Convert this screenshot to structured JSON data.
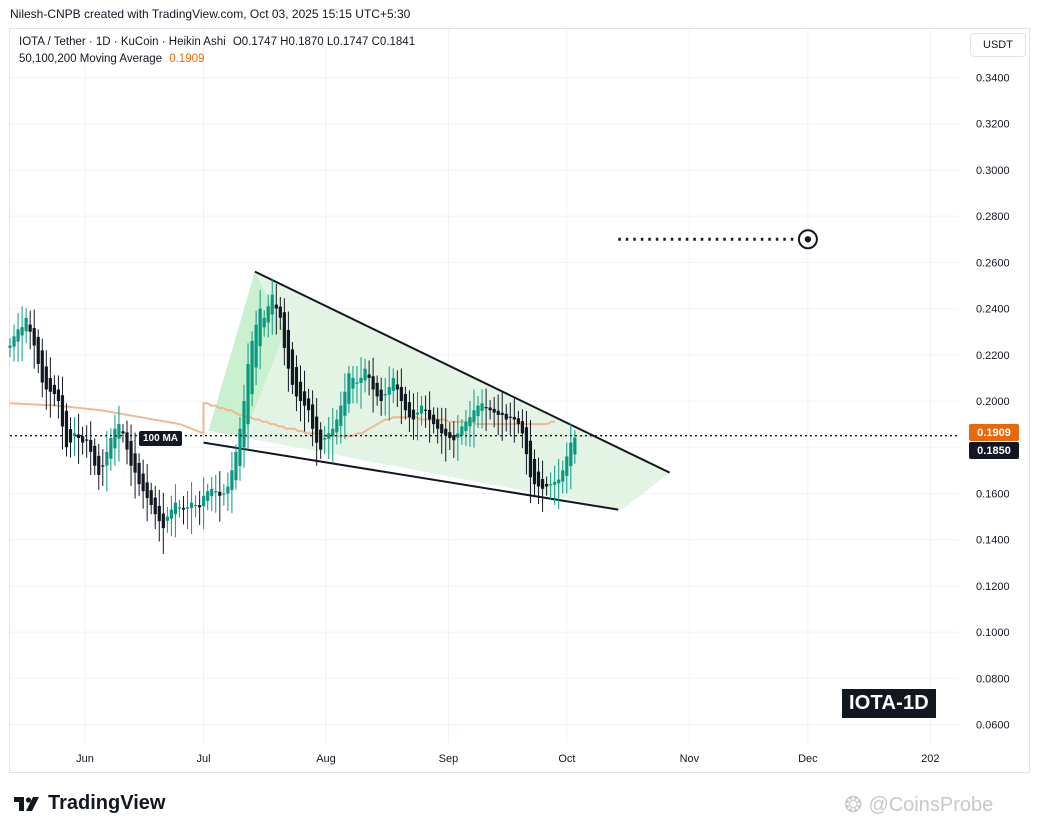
{
  "header": {
    "credit": "Nilesh-CNPB created with TradingView.com, Oct 03, 2025 15:15 UTC+5:30"
  },
  "legend": {
    "symbol_line": "IOTA / Tether · 1D · KuCoin · Heikin Ashi",
    "ohlc": "O0.1747 H0.1870 L0.1747 C0.1841",
    "ma_label": "50,100,200 Moving Average",
    "ma_value": "0.1909"
  },
  "currency_button": "USDT",
  "price_tags": {
    "ma": "0.1909",
    "last": "0.1850"
  },
  "ma_chip": "100 MA",
  "ticker_badge": "IOTA-1D",
  "footer": {
    "logo_text": "TradingView",
    "watermark": "@CoinsProbe"
  },
  "colors": {
    "up": "#089981",
    "down": "#131722",
    "ma": "#f0b08a",
    "ma_tag": "#e8690c",
    "wedge_fill": "#e3f4e5",
    "wedge_fill_bright": "#b8ecc0",
    "grid": "#f0f3fa"
  },
  "chart_data": {
    "type": "candlestick",
    "title": "IOTA / Tether · 1D · KuCoin · Heikin Ashi",
    "ylim": [
      0.052,
      0.361
    ],
    "y_ticks": [
      "0.0600",
      "0.0800",
      "0.1000",
      "0.1200",
      "0.1400",
      "0.1600",
      "0.1800",
      "0.2000",
      "0.2200",
      "0.2400",
      "0.2600",
      "0.2800",
      "0.3000",
      "0.3200",
      "0.3400"
    ],
    "x_ticks": [
      {
        "label": "Jun",
        "date": "2025-06-01"
      },
      {
        "label": "Jul",
        "date": "2025-07-01"
      },
      {
        "label": "Aug",
        "date": "2025-08-01"
      },
      {
        "label": "Sep",
        "date": "2025-09-01"
      },
      {
        "label": "Oct",
        "date": "2025-10-01"
      },
      {
        "label": "Nov",
        "date": "2025-11-01"
      },
      {
        "label": "Dec",
        "date": "2025-12-01"
      },
      {
        "label": "202",
        "date": "2026-01-01"
      }
    ],
    "x_range": [
      "2025-05-13",
      "2026-01-08"
    ],
    "last_price": 0.185,
    "ma_current": 0.1909,
    "closes": [
      0.224,
      0.228,
      0.231,
      0.232,
      0.236,
      0.23,
      0.224,
      0.216,
      0.208,
      0.205,
      0.204,
      0.203,
      0.2,
      0.189,
      0.18,
      0.182,
      0.186,
      0.184,
      0.182,
      0.183,
      0.178,
      0.172,
      0.168,
      0.172,
      0.178,
      0.184,
      0.188,
      0.19,
      0.186,
      0.179,
      0.172,
      0.169,
      0.164,
      0.161,
      0.158,
      0.155,
      0.151,
      0.148,
      0.145,
      0.15,
      0.153,
      0.156,
      0.154,
      0.153,
      0.154,
      0.156,
      0.155,
      0.154,
      0.159,
      0.161,
      0.162,
      0.161,
      0.159,
      0.16,
      0.163,
      0.17,
      0.178,
      0.188,
      0.2,
      0.216,
      0.226,
      0.233,
      0.24,
      0.236,
      0.241,
      0.246,
      0.24,
      0.236,
      0.223,
      0.214,
      0.207,
      0.202,
      0.2,
      0.198,
      0.196,
      0.188,
      0.182,
      0.179,
      0.184,
      0.186,
      0.188,
      0.192,
      0.198,
      0.204,
      0.212,
      0.21,
      0.208,
      0.21,
      0.214,
      0.21,
      0.205,
      0.202,
      0.2,
      0.203,
      0.206,
      0.21,
      0.205,
      0.2,
      0.196,
      0.193,
      0.192,
      0.195,
      0.198,
      0.196,
      0.192,
      0.19,
      0.188,
      0.186,
      0.185,
      0.184,
      0.183,
      0.186,
      0.189,
      0.191,
      0.193,
      0.196,
      0.198,
      0.199,
      0.197,
      0.196,
      0.195,
      0.194,
      0.194,
      0.192,
      0.193,
      0.192,
      0.19,
      0.186,
      0.177,
      0.167,
      0.164,
      0.163,
      0.162,
      0.163,
      0.164,
      0.165,
      0.166,
      0.17,
      0.176,
      0.182,
      0.1841
    ],
    "ma_100": [
      0.199,
      0.199,
      0.198,
      0.198,
      0.197,
      0.197,
      0.196,
      0.196,
      0.195,
      0.194,
      0.194,
      0.193,
      0.193,
      0.192,
      0.192,
      0.191,
      0.191,
      0.19,
      0.19,
      0.189,
      0.189,
      0.188,
      0.188,
      0.188,
      0.187,
      0.187,
      0.186,
      0.186,
      0.186,
      0.186,
      0.185,
      0.185,
      0.185,
      0.185,
      0.185,
      0.185,
      0.185,
      0.185,
      0.185,
      0.186,
      0.186,
      0.187,
      0.188,
      0.189,
      0.19,
      0.191,
      0.192,
      0.192,
      0.193,
      0.193,
      0.193,
      0.193,
      0.193,
      0.193,
      0.193,
      0.192,
      0.192,
      0.192,
      0.192,
      0.192,
      0.192,
      0.192,
      0.191,
      0.191,
      0.191,
      0.191,
      0.191,
      0.191,
      0.191,
      0.19,
      0.19,
      0.19,
      0.19,
      0.19,
      0.19,
      0.19,
      0.19,
      0.19,
      0.19,
      0.19,
      0.19,
      0.19,
      0.19,
      0.19,
      0.19,
      0.19,
      0.19,
      0.19,
      0.191,
      0.191
    ],
    "ma_100_start": "2025-07-01",
    "falling_wedge": {
      "upper": [
        [
          "2025-07-14",
          0.256
        ],
        [
          "2025-10-27",
          0.169
        ]
      ],
      "lower": [
        [
          "2025-07-01",
          0.182
        ],
        [
          "2025-10-14",
          0.153
        ]
      ]
    },
    "price_line": 0.185,
    "target": {
      "from": "2025-10-14",
      "to": "2025-12-01",
      "price": 0.27
    }
  }
}
